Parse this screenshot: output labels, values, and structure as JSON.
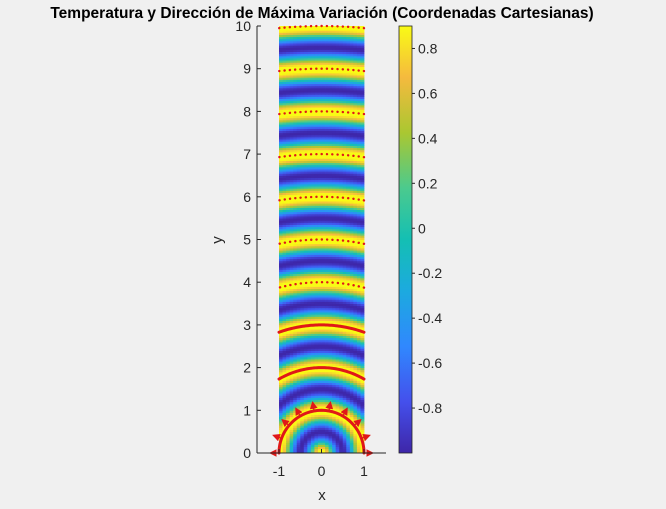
{
  "chart_data": {
    "type": "heatmap",
    "title": "Temperatura y Dirección de Máxima Variación (Coordenadas Cartesianas)",
    "xlabel": "x",
    "ylabel": "y",
    "xlim": [
      -1.35,
      1.35
    ],
    "ylim": [
      0,
      10
    ],
    "x_ticks": [
      "-1",
      "0",
      "1"
    ],
    "x_tick_values": [
      -1,
      0,
      1
    ],
    "y_ticks": [
      "0",
      "1",
      "2",
      "3",
      "4",
      "5",
      "6",
      "7",
      "8",
      "9",
      "10"
    ],
    "y_tick_values": [
      0,
      1,
      2,
      3,
      4,
      5,
      6,
      7,
      8,
      9,
      10
    ],
    "field": {
      "expression": "cos(2*pi*sqrt(x^2+y^2))",
      "x_range": [
        -1,
        1
      ],
      "y_range": [
        0,
        10
      ],
      "colormap": "parula"
    },
    "colorbar": {
      "limits": [
        -1,
        0.9
      ],
      "ticks": [
        "0.8",
        "0.6",
        "0.4",
        "0.2",
        "0",
        "-0.2",
        "-0.4",
        "-0.6",
        "-0.8"
      ],
      "tick_values": [
        0.8,
        0.6,
        0.4,
        0.2,
        0,
        -0.2,
        -0.4,
        -0.6,
        -0.8
      ]
    },
    "contours": {
      "color": "#e01818",
      "radii": [
        1,
        2,
        3,
        4,
        5,
        6,
        7,
        8,
        9,
        10
      ],
      "style": "solid near origin, dotted farther out"
    },
    "gradient_arrows": {
      "color": "#e01818",
      "radius": 1,
      "angles_deg": [
        0,
        20,
        40,
        60,
        80,
        100,
        120,
        140,
        160,
        180
      ]
    }
  }
}
